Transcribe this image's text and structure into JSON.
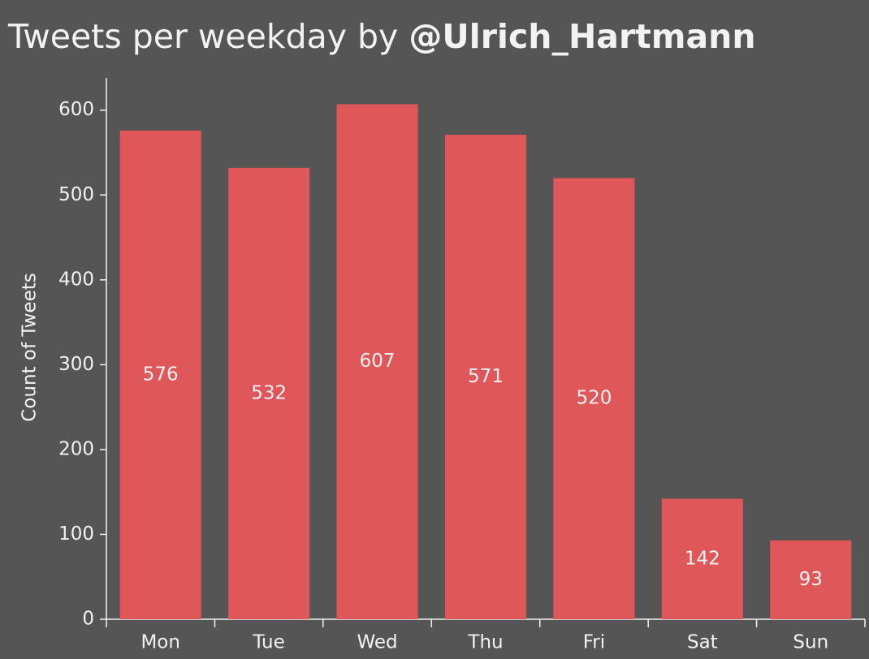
{
  "chart_data": {
    "type": "bar",
    "title": "Tweets per weekday by",
    "title_emphasis": "@Ulrich_Hartmann",
    "y_label": "Count of Tweets",
    "categories": [
      "Mon",
      "Tue",
      "Wed",
      "Thu",
      "Fri",
      "Sat",
      "Sun"
    ],
    "values": [
      576,
      532,
      607,
      571,
      520,
      142,
      93
    ],
    "color": "#e05759",
    "ylim": [
      0,
      638
    ],
    "yticks": [
      0,
      100,
      200,
      300,
      400,
      500,
      600
    ],
    "grid": false
  }
}
